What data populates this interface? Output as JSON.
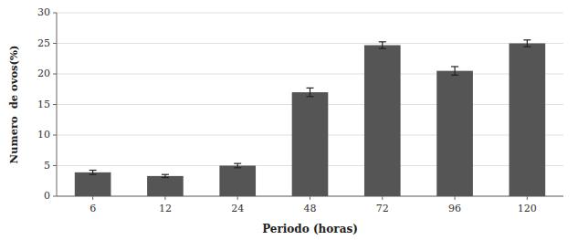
{
  "chart_data": {
    "type": "bar",
    "categories": [
      "6",
      "12",
      "24",
      "48",
      "72",
      "96",
      "120"
    ],
    "values": [
      3.9,
      3.3,
      5.0,
      17.0,
      24.7,
      20.5,
      25.0
    ],
    "errors": [
      0.35,
      0.25,
      0.35,
      0.7,
      0.55,
      0.7,
      0.55
    ],
    "color": "#555555",
    "xlabel": "Periodo (horas)",
    "ylabel": "Numero  de ovos(%)",
    "ylim": [
      0,
      30
    ],
    "yticks": [
      0,
      5,
      10,
      15,
      20,
      25,
      30
    ],
    "grid": true
  }
}
